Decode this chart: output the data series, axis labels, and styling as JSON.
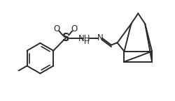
{
  "bg_color": "#ffffff",
  "line_color": "#2a2a2a",
  "line_width": 1.4,
  "font_size": 8.5,
  "label_color": "#2a2a2a",
  "figsize": [
    2.51,
    1.45
  ],
  "dpi": 100,
  "xlim": [
    0,
    10
  ],
  "ylim": [
    0,
    5.8
  ]
}
